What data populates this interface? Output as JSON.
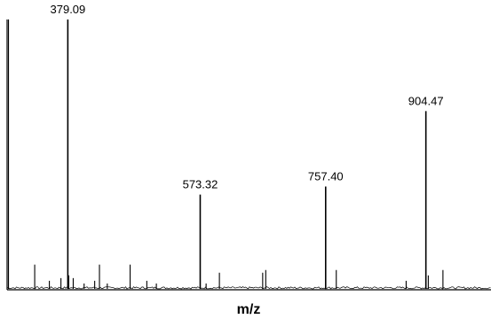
{
  "chart_data": {
    "type": "line",
    "title": "",
    "xlabel": "m/z",
    "ylabel": "",
    "xlim": [
      290,
      1000
    ],
    "ylim": [
      0,
      100
    ],
    "grid": false,
    "axes": {
      "left_axis": true,
      "bottom_axis": true,
      "y_ticks": false,
      "x_ticks": false
    },
    "line_color": "#000000",
    "labeled_peaks": [
      {
        "mz": 379.09,
        "label": "379.09",
        "intensity": 100
      },
      {
        "mz": 573.32,
        "label": "573.32",
        "intensity": 35
      },
      {
        "mz": 757.4,
        "label": "757.40",
        "intensity": 38
      },
      {
        "mz": 904.47,
        "label": "904.47",
        "intensity": 66
      }
    ],
    "minor_peaks": [
      {
        "mz": 292,
        "intensity": 100
      },
      {
        "mz": 330.5,
        "intensity": 9
      },
      {
        "mz": 380.5,
        "intensity": 5
      },
      {
        "mz": 352,
        "intensity": 3
      },
      {
        "mz": 369,
        "intensity": 4
      },
      {
        "mz": 387,
        "intensity": 4
      },
      {
        "mz": 403,
        "intensity": 2
      },
      {
        "mz": 418.5,
        "intensity": 3
      },
      {
        "mz": 425.5,
        "intensity": 9
      },
      {
        "mz": 437,
        "intensity": 2
      },
      {
        "mz": 470.5,
        "intensity": 9
      },
      {
        "mz": 495,
        "intensity": 3
      },
      {
        "mz": 509,
        "intensity": 2
      },
      {
        "mz": 582,
        "intensity": 2
      },
      {
        "mz": 601.5,
        "intensity": 6
      },
      {
        "mz": 665,
        "intensity": 6
      },
      {
        "mz": 669.5,
        "intensity": 7
      },
      {
        "mz": 773,
        "intensity": 7
      },
      {
        "mz": 875.5,
        "intensity": 3
      },
      {
        "mz": 908,
        "intensity": 5
      },
      {
        "mz": 929.5,
        "intensity": 7
      }
    ]
  }
}
